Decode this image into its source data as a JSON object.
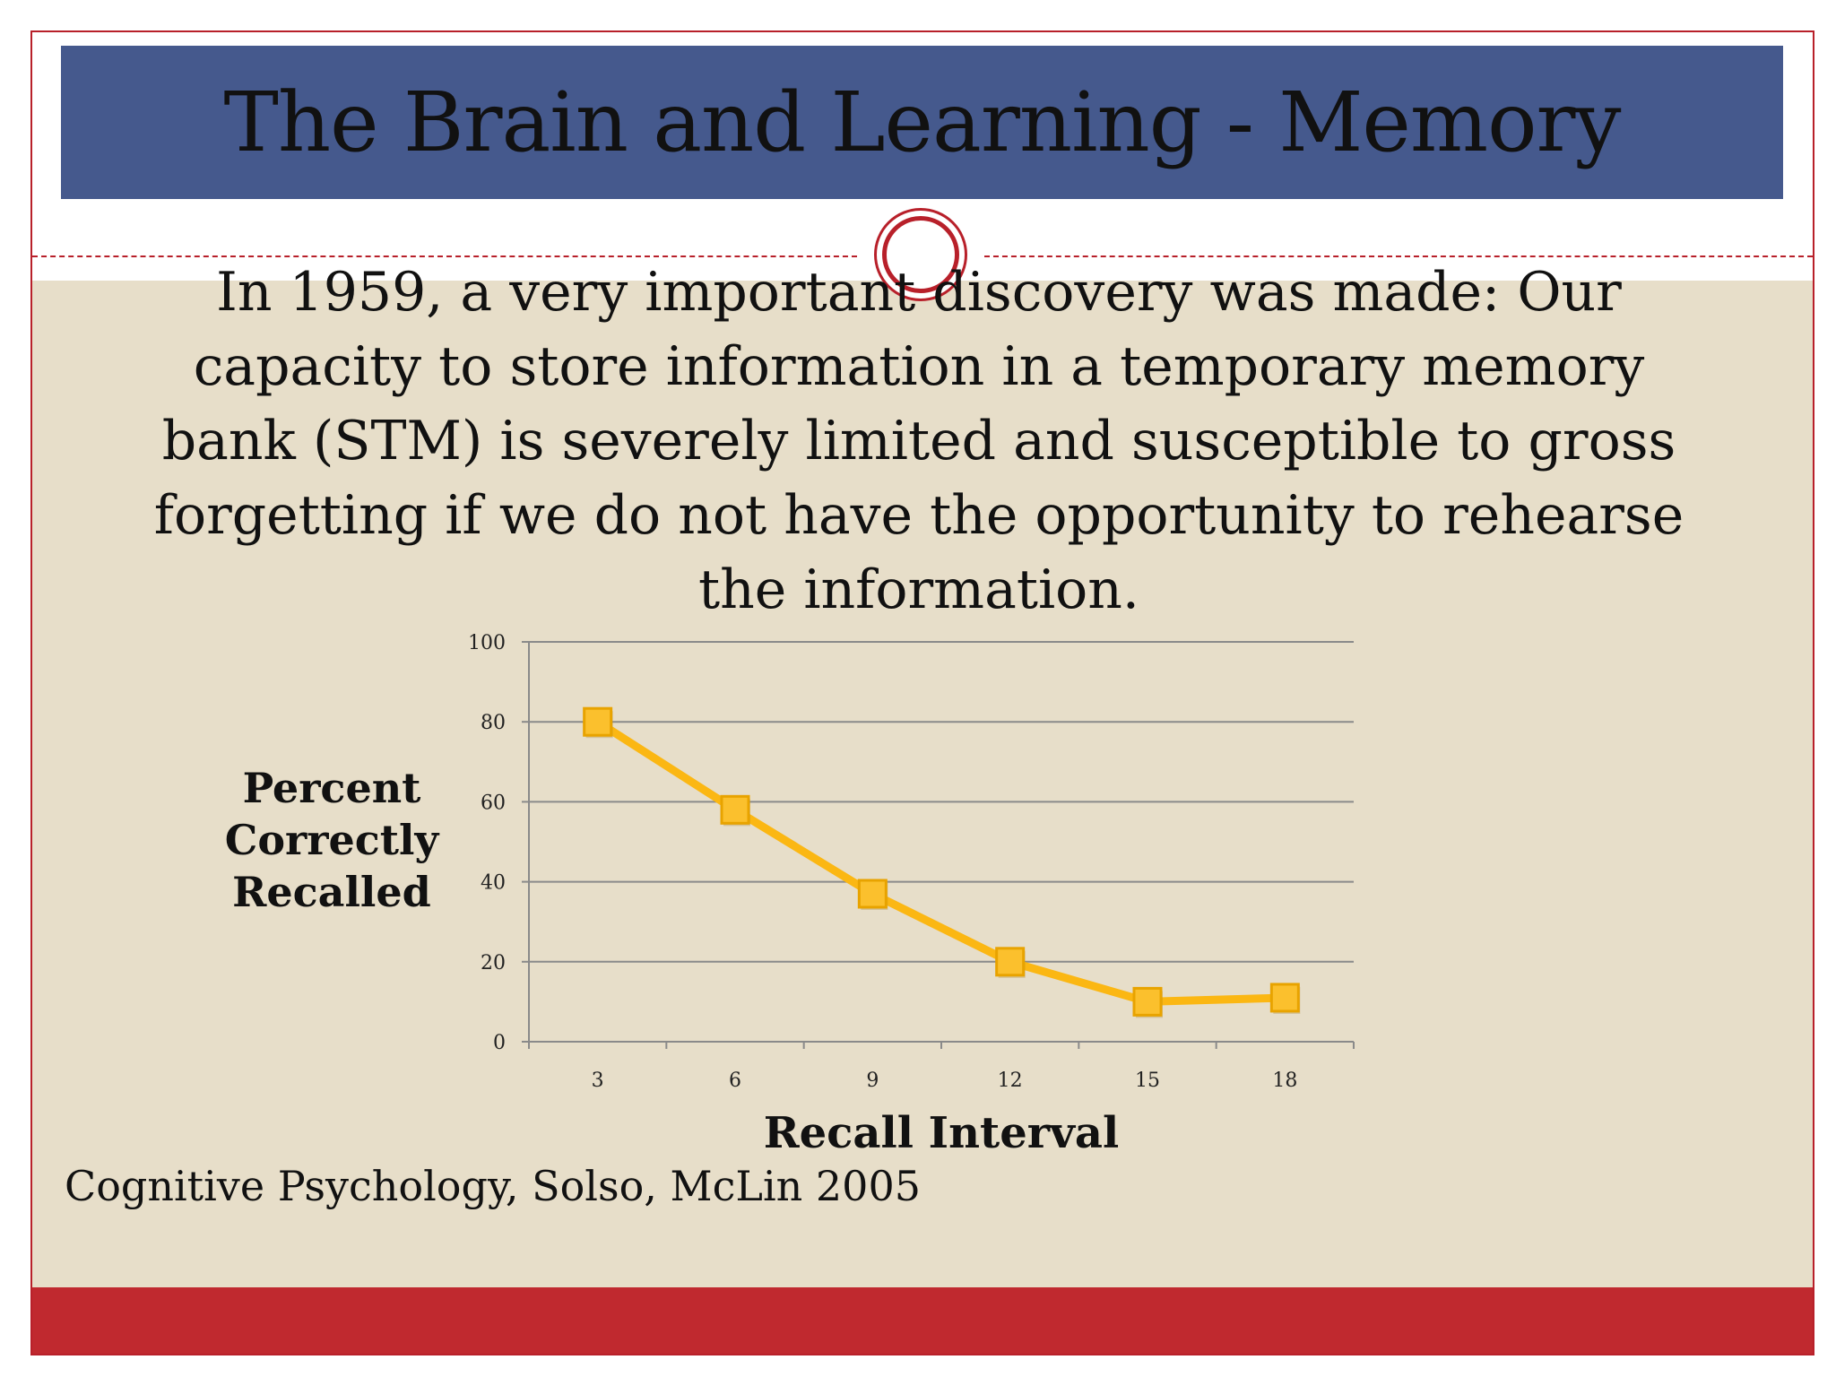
{
  "slide": {
    "title": "The Brain and Learning - Memory",
    "intro_text": "In 1959, a very important discovery was made:  Our capacity to store information in a temporary memory bank (STM) is severely limited and susceptible to gross forgetting if we do not have the opportunity to rehearse the information.",
    "source": "Cognitive Psychology, Solso, McLin 2005",
    "colors": {
      "title_bar": "#45598d",
      "content_bg": "#e7dec9",
      "accent_red": "#c0292f",
      "series_line": "#fbb713",
      "marker_fill": "#fbc02d",
      "marker_stroke": "#e8a300"
    }
  },
  "chart_data": {
    "type": "line",
    "x": [
      3,
      6,
      9,
      12,
      15,
      18
    ],
    "categories": [
      "3",
      "6",
      "9",
      "12",
      "15",
      "18"
    ],
    "series": [
      {
        "values": [
          80,
          58,
          37,
          20,
          10,
          11
        ]
      }
    ],
    "title": "",
    "xlabel": "Recall Interval",
    "ylabel": "Percent Correctly Recalled",
    "ylim": [
      0,
      100
    ],
    "yticks": [
      0,
      20,
      40,
      60,
      80,
      100
    ],
    "grid": true,
    "legend": "none",
    "marker": "square"
  }
}
